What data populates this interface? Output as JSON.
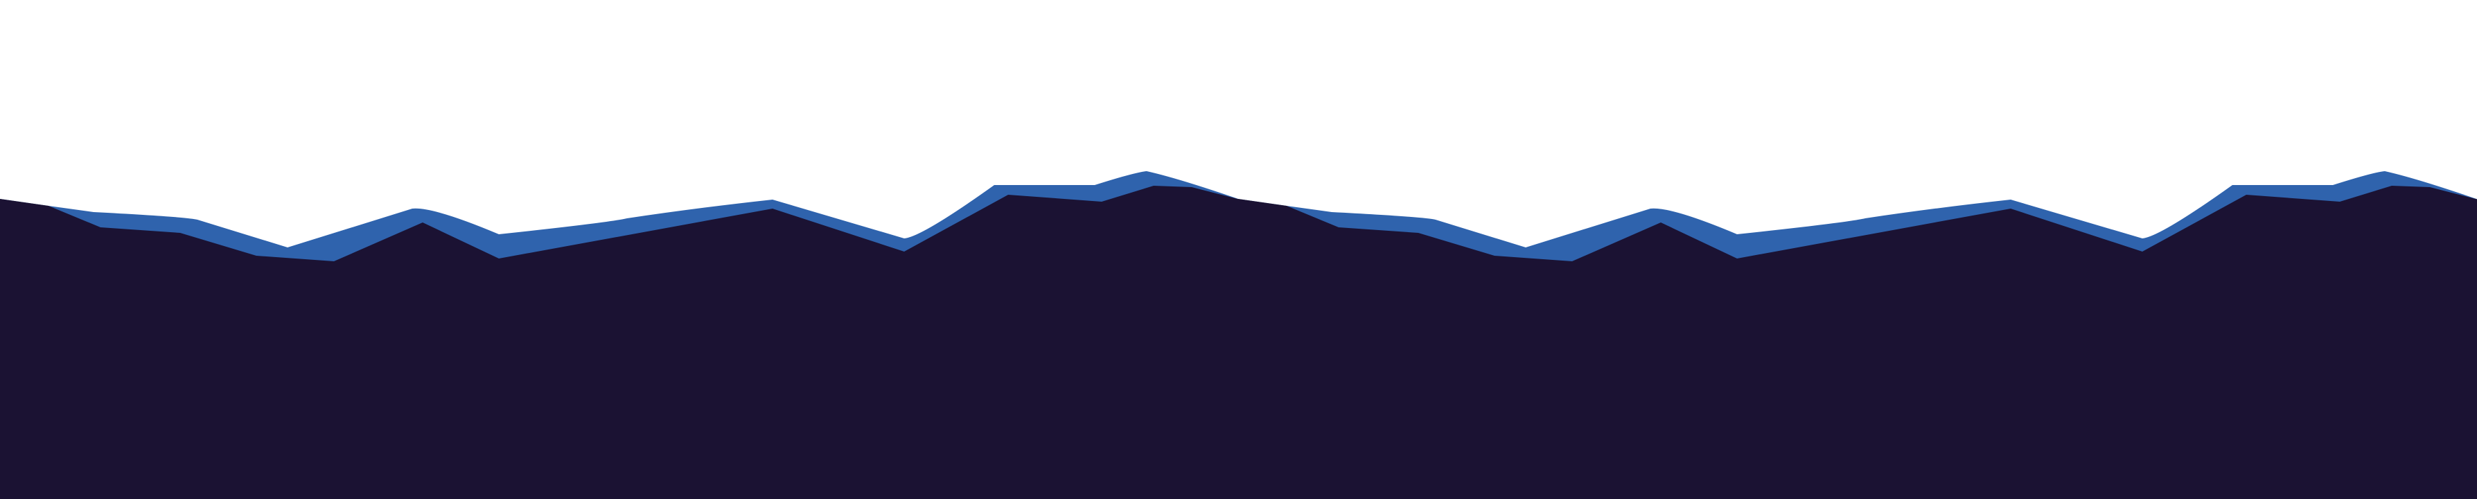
{
  "colors": {
    "background": "#ffffff",
    "accent_wave": "#2f63ad",
    "dark_wave": "#1b1233"
  }
}
